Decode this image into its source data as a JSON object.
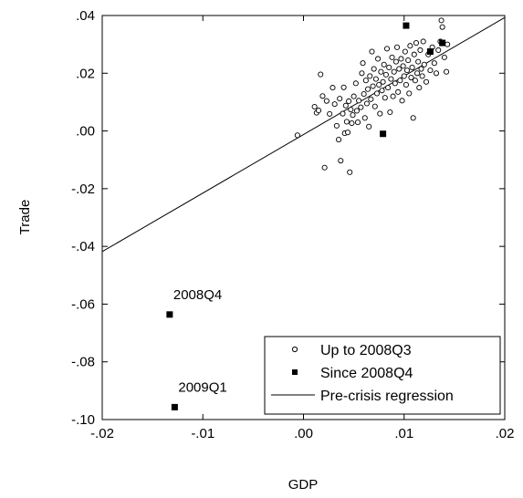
{
  "chart_data": {
    "type": "scatter",
    "xlabel": "GDP",
    "ylabel": "Trade",
    "xlim": [
      -0.02,
      0.02
    ],
    "ylim": [
      -0.1,
      0.04
    ],
    "x_ticks": [
      -0.02,
      -0.01,
      0.0,
      0.01,
      0.02
    ],
    "x_tick_labels": [
      "-.02",
      "-.01",
      ".00",
      ".01",
      ".02"
    ],
    "y_ticks": [
      0.04,
      0.02,
      0.0,
      -0.02,
      -0.04,
      -0.06,
      -0.08,
      -0.1
    ],
    "y_tick_labels": [
      ".04",
      ".02",
      ".00",
      "-.02",
      "-.04",
      "-.06",
      "-.08",
      "-.10"
    ],
    "grid": false,
    "legend_position": "bottom-right",
    "legend": [
      {
        "label": "Up to 2008Q3",
        "marker": "open-circle"
      },
      {
        "label": "Since 2008Q4",
        "marker": "filled-square"
      },
      {
        "label": "Pre-crisis regression",
        "marker": "line"
      }
    ],
    "annotations": [
      {
        "text": "2008Q4",
        "x": -0.0133,
        "y": -0.0636
      },
      {
        "text": "2009Q1",
        "x": -0.0128,
        "y": -0.0957
      }
    ],
    "regression_line": {
      "name": "Pre-crisis regression",
      "x": [
        -0.02,
        0.02
      ],
      "y": [
        -0.0418,
        0.0393
      ]
    },
    "series": [
      {
        "name": "Up to 2008Q3",
        "marker": "open-circle",
        "points": [
          [
            -0.0006,
            -0.0015
          ],
          [
            0.0011,
            0.0084
          ],
          [
            0.0013,
            0.0063
          ],
          [
            0.0015,
            0.0071
          ],
          [
            0.0017,
            0.0196
          ],
          [
            0.0019,
            0.0121
          ],
          [
            0.0021,
            -0.0127
          ],
          [
            0.0023,
            0.0104
          ],
          [
            0.0026,
            0.0059
          ],
          [
            0.0029,
            0.015
          ],
          [
            0.0031,
            0.0093
          ],
          [
            0.0033,
            0.0018
          ],
          [
            0.0035,
            -0.003
          ],
          [
            0.0036,
            0.0112
          ],
          [
            0.0037,
            -0.0103
          ],
          [
            0.0039,
            0.006
          ],
          [
            0.004,
            0.0151
          ],
          [
            0.0041,
            -0.0008
          ],
          [
            0.0042,
            0.0088
          ],
          [
            0.0043,
            0.0032
          ],
          [
            0.0044,
            -0.0005
          ],
          [
            0.0045,
            0.0103
          ],
          [
            0.0046,
            -0.0143
          ],
          [
            0.0047,
            0.0074
          ],
          [
            0.0048,
            0.0027
          ],
          [
            0.0049,
            0.0055
          ],
          [
            0.005,
            0.012
          ],
          [
            0.0052,
            0.0165
          ],
          [
            0.0053,
            0.007
          ],
          [
            0.0054,
            0.003
          ],
          [
            0.0055,
            0.0105
          ],
          [
            0.0057,
            0.0082
          ],
          [
            0.0058,
            0.02
          ],
          [
            0.0059,
            0.0235
          ],
          [
            0.006,
            0.0128
          ],
          [
            0.0061,
            0.0045
          ],
          [
            0.0062,
            0.0175
          ],
          [
            0.0063,
            0.0095
          ],
          [
            0.0064,
            0.0145
          ],
          [
            0.0065,
            0.0015
          ],
          [
            0.0066,
            0.019
          ],
          [
            0.0067,
            0.011
          ],
          [
            0.0068,
            0.0275
          ],
          [
            0.0069,
            0.0155
          ],
          [
            0.007,
            0.0215
          ],
          [
            0.0071,
            0.0085
          ],
          [
            0.0072,
            0.018
          ],
          [
            0.0073,
            0.013
          ],
          [
            0.0074,
            0.025
          ],
          [
            0.0075,
            0.016
          ],
          [
            0.0076,
            0.006
          ],
          [
            0.0077,
            0.0205
          ],
          [
            0.0078,
            0.014
          ],
          [
            0.0079,
            0.017
          ],
          [
            0.008,
            0.023
          ],
          [
            0.0081,
            0.0115
          ],
          [
            0.0082,
            0.0195
          ],
          [
            0.0083,
            0.0285
          ],
          [
            0.0084,
            0.015
          ],
          [
            0.0085,
            0.022
          ],
          [
            0.0086,
            0.0065
          ],
          [
            0.0087,
            0.018
          ],
          [
            0.0088,
            0.0255
          ],
          [
            0.0089,
            0.012
          ],
          [
            0.009,
            0.0205
          ],
          [
            0.0091,
            0.0165
          ],
          [
            0.0092,
            0.024
          ],
          [
            0.0093,
            0.029
          ],
          [
            0.0094,
            0.0135
          ],
          [
            0.0095,
            0.0215
          ],
          [
            0.0096,
            0.0175
          ],
          [
            0.0097,
            0.025
          ],
          [
            0.0098,
            0.0105
          ],
          [
            0.0099,
            0.0225
          ],
          [
            0.01,
            0.019
          ],
          [
            0.0101,
            0.0275
          ],
          [
            0.0102,
            0.016
          ],
          [
            0.0103,
            0.021
          ],
          [
            0.0104,
            0.0245
          ],
          [
            0.0105,
            0.013
          ],
          [
            0.0106,
            0.0295
          ],
          [
            0.0107,
            0.0185
          ],
          [
            0.0108,
            0.022
          ],
          [
            0.0109,
            0.0045
          ],
          [
            0.011,
            0.0265
          ],
          [
            0.0111,
            0.0175
          ],
          [
            0.0112,
            0.0305
          ],
          [
            0.0113,
            0.02
          ],
          [
            0.0114,
            0.024
          ],
          [
            0.0115,
            0.015
          ],
          [
            0.0116,
            0.028
          ],
          [
            0.0117,
            0.0215
          ],
          [
            0.0118,
            0.019
          ],
          [
            0.0119,
            0.031
          ],
          [
            0.012,
            0.023
          ],
          [
            0.0122,
            0.017
          ],
          [
            0.0124,
            0.0265
          ],
          [
            0.0126,
            0.021
          ],
          [
            0.0128,
            0.029
          ],
          [
            0.013,
            0.0235
          ],
          [
            0.0132,
            0.02
          ],
          [
            0.0134,
            0.028
          ],
          [
            0.0136,
            0.031
          ],
          [
            0.0137,
            0.0383
          ],
          [
            0.0138,
            0.036
          ],
          [
            0.014,
            0.0255
          ],
          [
            0.0142,
            0.0205
          ],
          [
            0.0143,
            0.03
          ]
        ]
      },
      {
        "name": "Since 2008Q4",
        "marker": "filled-square",
        "points": [
          [
            -0.0133,
            -0.0636
          ],
          [
            -0.0128,
            -0.0957
          ],
          [
            0.0079,
            -0.001
          ],
          [
            0.0102,
            0.0365
          ],
          [
            0.0126,
            0.0275
          ],
          [
            0.0138,
            0.0305
          ]
        ]
      }
    ]
  }
}
